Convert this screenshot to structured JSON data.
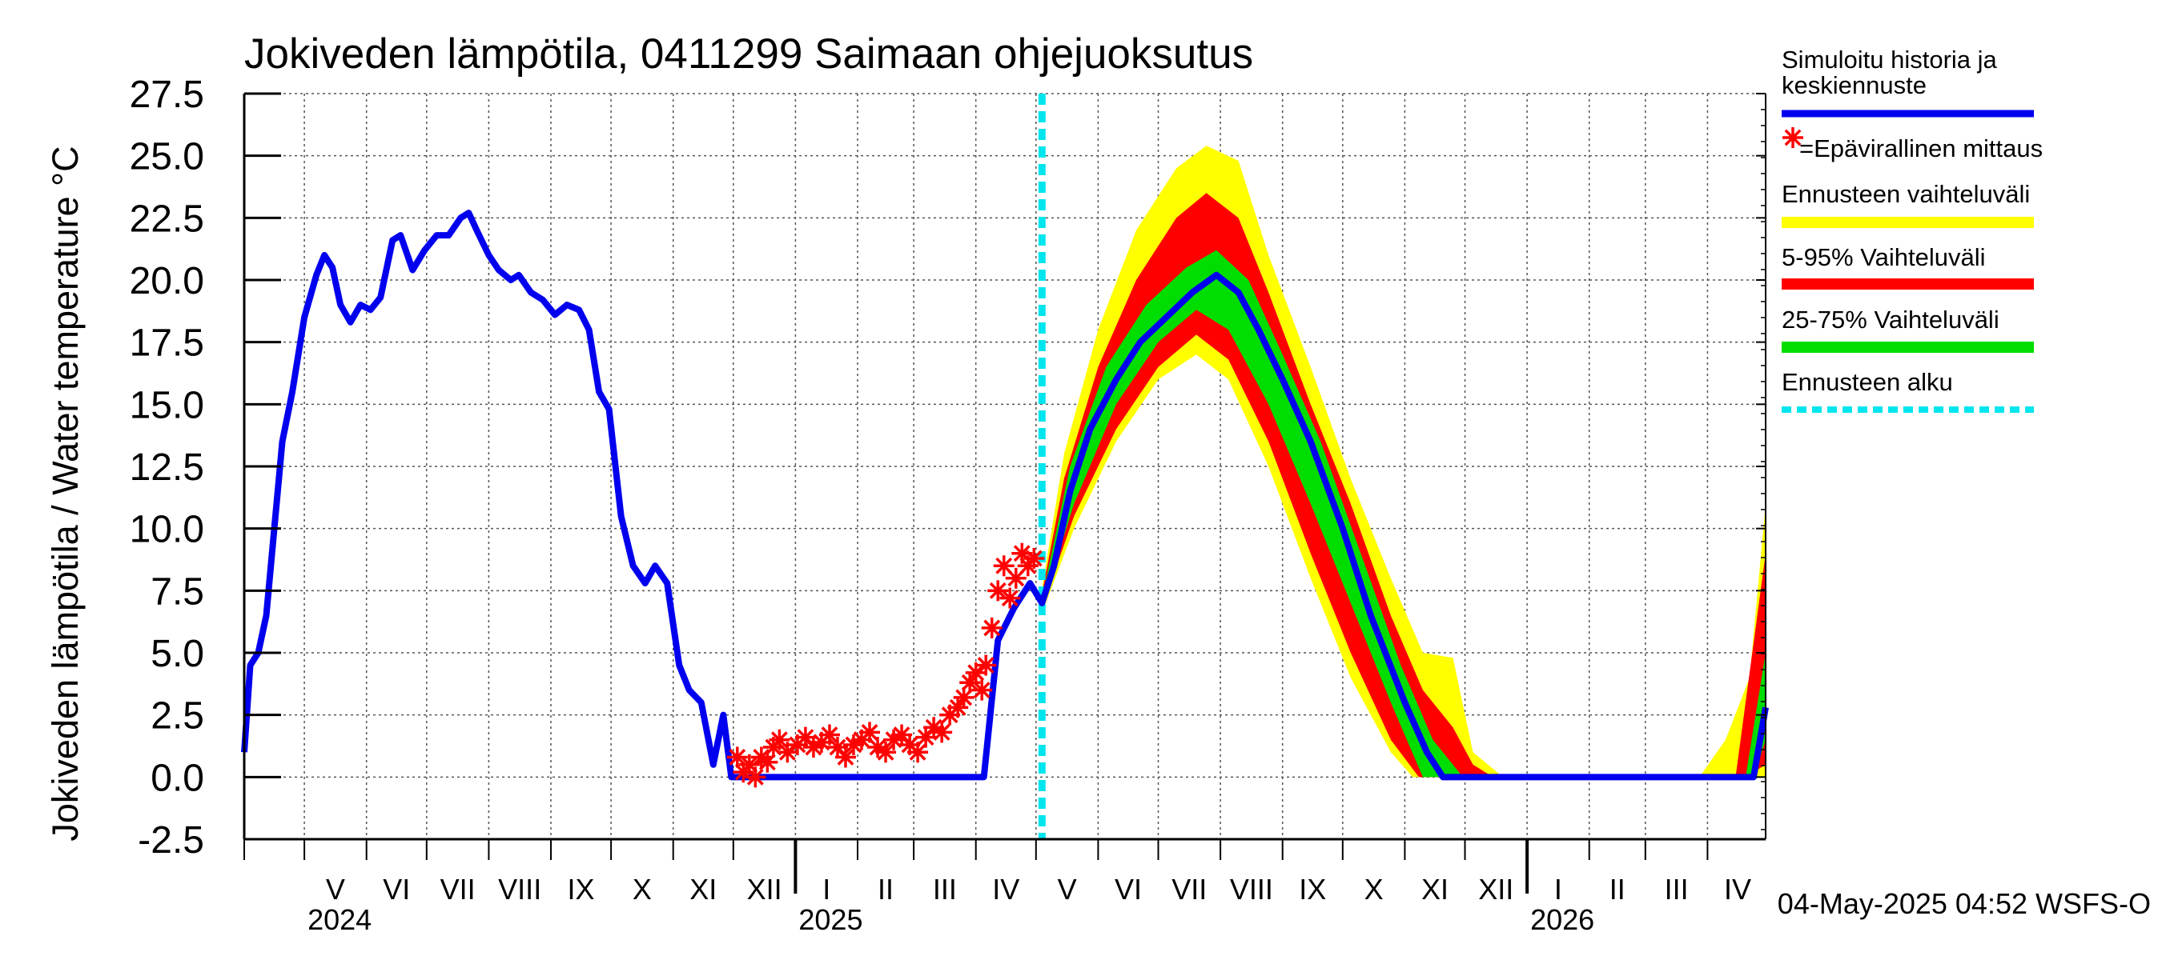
{
  "chart_data": {
    "type": "line",
    "title": "Jokiveden lämpötila, 0411299 Saimaan ohjejuoksutus",
    "ylabel": "Jokiveden lämpötila / Water temperature   °C",
    "ylim": [
      -2.5,
      27.5
    ],
    "yticks": [
      "27.5",
      "25.0",
      "22.5",
      "20.0",
      "17.5",
      "15.0",
      "12.5",
      "10.0",
      "7.5",
      "5.0",
      "2.5",
      "0.0",
      "-2.5"
    ],
    "x_range": [
      "2024-04-01",
      "2026-04-30"
    ],
    "month_labels": [
      "V",
      "VI",
      "VII",
      "VIII",
      "IX",
      "X",
      "XI",
      "XII",
      "I",
      "II",
      "III",
      "IV",
      "V",
      "VI",
      "VII",
      "VIII",
      "IX",
      "X",
      "XI",
      "XII",
      "I",
      "II",
      "III",
      "IV"
    ],
    "year_labels": [
      "2024",
      "2025",
      "2026"
    ],
    "forecast_start": "2025-05-04",
    "grid": true,
    "legend_position": "right",
    "timestamp": "04-May-2025 04:52 WSFS-O",
    "colors": {
      "history": "#0000ee",
      "measurement": "#ff0000",
      "range_full": "#ffff00",
      "range_5_95": "#ff0000",
      "range_25_75": "#00dd00",
      "forecast_start": "#00e5ee"
    },
    "legend": [
      {
        "label": "Simuloitu historia ja",
        "label2": "keskiennuste",
        "kind": "line",
        "color": "#0000ee"
      },
      {
        "label": "=Epävirallinen mittaus",
        "kind": "star",
        "color": "#ff0000"
      },
      {
        "label": "Ennusteen vaihteluväli",
        "kind": "line",
        "color": "#ffff00"
      },
      {
        "label": "5-95% Vaihteluväli",
        "kind": "line",
        "color": "#ff0000"
      },
      {
        "label": "25-75% Vaihteluväli",
        "kind": "line",
        "color": "#00dd00"
      },
      {
        "label": "Ennusteen alku",
        "kind": "dash",
        "color": "#00e5ee"
      }
    ],
    "series": [
      {
        "name": "Simuloitu historia ja keskiennuste",
        "points": [
          [
            "2024-04-01",
            1.0
          ],
          [
            "2024-04-04",
            4.5
          ],
          [
            "2024-04-08",
            5.0
          ],
          [
            "2024-04-12",
            6.5
          ],
          [
            "2024-04-16",
            10.0
          ],
          [
            "2024-04-20",
            13.5
          ],
          [
            "2024-04-25",
            15.5
          ],
          [
            "2024-05-01",
            18.5
          ],
          [
            "2024-05-07",
            20.2
          ],
          [
            "2024-05-11",
            21.0
          ],
          [
            "2024-05-15",
            20.5
          ],
          [
            "2024-05-19",
            19.0
          ],
          [
            "2024-05-24",
            18.3
          ],
          [
            "2024-05-29",
            19.0
          ],
          [
            "2024-06-03",
            18.8
          ],
          [
            "2024-06-08",
            19.3
          ],
          [
            "2024-06-14",
            21.6
          ],
          [
            "2024-06-18",
            21.8
          ],
          [
            "2024-06-24",
            20.4
          ],
          [
            "2024-06-30",
            21.2
          ],
          [
            "2024-07-06",
            21.8
          ],
          [
            "2024-07-12",
            21.8
          ],
          [
            "2024-07-18",
            22.5
          ],
          [
            "2024-07-22",
            22.7
          ],
          [
            "2024-07-26",
            22.0
          ],
          [
            "2024-08-01",
            21.0
          ],
          [
            "2024-08-06",
            20.4
          ],
          [
            "2024-08-12",
            20.0
          ],
          [
            "2024-08-16",
            20.2
          ],
          [
            "2024-08-22",
            19.5
          ],
          [
            "2024-08-28",
            19.2
          ],
          [
            "2024-09-03",
            18.6
          ],
          [
            "2024-09-09",
            19.0
          ],
          [
            "2024-09-15",
            18.8
          ],
          [
            "2024-09-20",
            18.0
          ],
          [
            "2024-09-25",
            15.5
          ],
          [
            "2024-09-30",
            14.8
          ],
          [
            "2024-10-06",
            10.5
          ],
          [
            "2024-10-12",
            8.5
          ],
          [
            "2024-10-18",
            7.8
          ],
          [
            "2024-10-23",
            8.5
          ],
          [
            "2024-10-29",
            7.8
          ],
          [
            "2024-11-04",
            4.5
          ],
          [
            "2024-11-09",
            3.5
          ],
          [
            "2024-11-15",
            3.0
          ],
          [
            "2024-11-21",
            0.5
          ],
          [
            "2024-11-26",
            2.5
          ],
          [
            "2024-11-30",
            0.0
          ],
          [
            "2024-12-25",
            0.0
          ],
          [
            "2025-04-05",
            0.0
          ],
          [
            "2025-04-12",
            5.5
          ],
          [
            "2025-04-20",
            6.8
          ],
          [
            "2025-04-28",
            7.8
          ],
          [
            "2025-05-04",
            7.0
          ],
          [
            "2025-05-10",
            8.5
          ],
          [
            "2025-05-18",
            11.5
          ],
          [
            "2025-05-28",
            14.0
          ],
          [
            "2025-06-10",
            16.0
          ],
          [
            "2025-06-22",
            17.5
          ],
          [
            "2025-07-05",
            18.5
          ],
          [
            "2025-07-18",
            19.5
          ],
          [
            "2025-07-30",
            20.2
          ],
          [
            "2025-08-10",
            19.5
          ],
          [
            "2025-08-20",
            18.0
          ],
          [
            "2025-09-01",
            16.0
          ],
          [
            "2025-09-15",
            13.5
          ],
          [
            "2025-10-01",
            10.0
          ],
          [
            "2025-10-15",
            6.5
          ],
          [
            "2025-11-01",
            3.0
          ],
          [
            "2025-11-12",
            1.0
          ],
          [
            "2025-11-20",
            0.0
          ],
          [
            "2026-04-24",
            0.0
          ],
          [
            "2026-04-30",
            2.8
          ]
        ]
      },
      {
        "name": "Epävirallinen mittaus",
        "points": [
          [
            "2024-12-03",
            0.8
          ],
          [
            "2024-12-06",
            0.2
          ],
          [
            "2024-12-09",
            0.5
          ],
          [
            "2024-12-12",
            0.0
          ],
          [
            "2024-12-15",
            0.8
          ],
          [
            "2024-12-18",
            0.6
          ],
          [
            "2024-12-21",
            1.2
          ],
          [
            "2024-12-24",
            1.5
          ],
          [
            "2024-12-28",
            1.0
          ],
          [
            "2025-01-02",
            1.3
          ],
          [
            "2025-01-06",
            1.6
          ],
          [
            "2025-01-10",
            1.2
          ],
          [
            "2025-01-14",
            1.4
          ],
          [
            "2025-01-18",
            1.7
          ],
          [
            "2025-01-22",
            1.2
          ],
          [
            "2025-01-26",
            0.8
          ],
          [
            "2025-01-30",
            1.3
          ],
          [
            "2025-02-03",
            1.5
          ],
          [
            "2025-02-07",
            1.8
          ],
          [
            "2025-02-11",
            1.2
          ],
          [
            "2025-02-15",
            1.0
          ],
          [
            "2025-02-19",
            1.5
          ],
          [
            "2025-02-23",
            1.7
          ],
          [
            "2025-02-27",
            1.3
          ],
          [
            "2025-03-03",
            1.0
          ],
          [
            "2025-03-07",
            1.6
          ],
          [
            "2025-03-11",
            2.0
          ],
          [
            "2025-03-15",
            1.8
          ],
          [
            "2025-03-19",
            2.5
          ],
          [
            "2025-03-23",
            2.8
          ],
          [
            "2025-03-26",
            3.2
          ],
          [
            "2025-03-29",
            3.8
          ],
          [
            "2025-04-01",
            4.2
          ],
          [
            "2025-04-04",
            3.5
          ],
          [
            "2025-04-06",
            4.5
          ],
          [
            "2025-04-09",
            6.0
          ],
          [
            "2025-04-12",
            7.5
          ],
          [
            "2025-04-15",
            8.5
          ],
          [
            "2025-04-18",
            7.2
          ],
          [
            "2025-04-21",
            8.0
          ],
          [
            "2025-04-24",
            9.0
          ],
          [
            "2025-04-27",
            8.5
          ],
          [
            "2025-04-30",
            8.8
          ]
        ]
      },
      {
        "name": "Ennusteen vaihteluväli",
        "lower": [
          [
            "2025-05-04",
            6.6
          ],
          [
            "2025-05-20",
            10.0
          ],
          [
            "2025-06-10",
            13.5
          ],
          [
            "2025-07-01",
            16.0
          ],
          [
            "2025-07-20",
            17.0
          ],
          [
            "2025-08-05",
            16.0
          ],
          [
            "2025-08-25",
            12.5
          ],
          [
            "2025-09-15",
            8.0
          ],
          [
            "2025-10-05",
            4.0
          ],
          [
            "2025-10-25",
            1.0
          ],
          [
            "2025-11-05",
            0.0
          ],
          [
            "2026-03-25",
            0.0
          ],
          [
            "2026-04-30",
            0.0
          ]
        ],
        "upper": [
          [
            "2025-05-04",
            7.6
          ],
          [
            "2025-05-15",
            13.0
          ],
          [
            "2025-06-01",
            18.0
          ],
          [
            "2025-06-20",
            22.0
          ],
          [
            "2025-07-10",
            24.5
          ],
          [
            "2025-07-25",
            25.4
          ],
          [
            "2025-08-10",
            24.8
          ],
          [
            "2025-08-25",
            21.0
          ],
          [
            "2025-09-15",
            16.5
          ],
          [
            "2025-10-05",
            12.0
          ],
          [
            "2025-10-25",
            8.0
          ],
          [
            "2025-11-10",
            5.0
          ],
          [
            "2025-11-25",
            4.8
          ],
          [
            "2025-12-05",
            1.0
          ],
          [
            "2025-12-20",
            0.0
          ],
          [
            "2026-03-28",
            0.0
          ],
          [
            "2026-04-10",
            1.5
          ],
          [
            "2026-04-22",
            4.0
          ],
          [
            "2026-04-30",
            11.0
          ]
        ]
      },
      {
        "name": "5-95% Vaihteluväli",
        "lower": [
          [
            "2025-05-04",
            6.8
          ],
          [
            "2025-05-20",
            10.5
          ],
          [
            "2025-06-10",
            14.0
          ],
          [
            "2025-07-01",
            16.5
          ],
          [
            "2025-07-20",
            17.8
          ],
          [
            "2025-08-05",
            16.8
          ],
          [
            "2025-08-25",
            13.5
          ],
          [
            "2025-09-15",
            9.0
          ],
          [
            "2025-10-05",
            5.0
          ],
          [
            "2025-10-25",
            1.5
          ],
          [
            "2025-11-08",
            0.0
          ],
          [
            "2026-04-20",
            0.0
          ],
          [
            "2026-04-30",
            0.5
          ]
        ],
        "upper": [
          [
            "2025-05-04",
            7.4
          ],
          [
            "2025-05-15",
            12.0
          ],
          [
            "2025-06-01",
            16.5
          ],
          [
            "2025-06-20",
            20.0
          ],
          [
            "2025-07-10",
            22.5
          ],
          [
            "2025-07-25",
            23.5
          ],
          [
            "2025-08-10",
            22.5
          ],
          [
            "2025-08-25",
            19.5
          ],
          [
            "2025-09-15",
            15.0
          ],
          [
            "2025-10-05",
            11.0
          ],
          [
            "2025-10-25",
            6.5
          ],
          [
            "2025-11-10",
            3.5
          ],
          [
            "2025-11-25",
            2.0
          ],
          [
            "2025-12-05",
            0.5
          ],
          [
            "2025-12-15",
            0.0
          ],
          [
            "2026-04-15",
            0.0
          ],
          [
            "2026-04-30",
            9.0
          ]
        ]
      },
      {
        "name": "25-75% Vaihteluväli",
        "lower": [
          [
            "2025-05-04",
            6.9
          ],
          [
            "2025-05-20",
            11.0
          ],
          [
            "2025-06-10",
            15.0
          ],
          [
            "2025-07-01",
            17.5
          ],
          [
            "2025-07-20",
            18.8
          ],
          [
            "2025-08-05",
            18.0
          ],
          [
            "2025-08-25",
            15.0
          ],
          [
            "2025-09-15",
            11.0
          ],
          [
            "2025-10-05",
            7.0
          ],
          [
            "2025-10-25",
            3.0
          ],
          [
            "2025-11-10",
            0.0
          ],
          [
            "2026-04-24",
            0.0
          ],
          [
            "2026-04-30",
            1.5
          ]
        ],
        "upper": [
          [
            "2025-05-04",
            7.2
          ],
          [
            "2025-05-18",
            12.5
          ],
          [
            "2025-06-05",
            16.5
          ],
          [
            "2025-06-25",
            19.0
          ],
          [
            "2025-07-15",
            20.5
          ],
          [
            "2025-07-30",
            21.2
          ],
          [
            "2025-08-15",
            20.0
          ],
          [
            "2025-09-01",
            17.0
          ],
          [
            "2025-09-20",
            13.5
          ],
          [
            "2025-10-10",
            9.0
          ],
          [
            "2025-10-30",
            4.5
          ],
          [
            "2025-11-15",
            1.5
          ],
          [
            "2025-11-30",
            0.0
          ],
          [
            "2026-04-20",
            0.0
          ],
          [
            "2026-04-30",
            5.0
          ]
        ]
      }
    ]
  }
}
